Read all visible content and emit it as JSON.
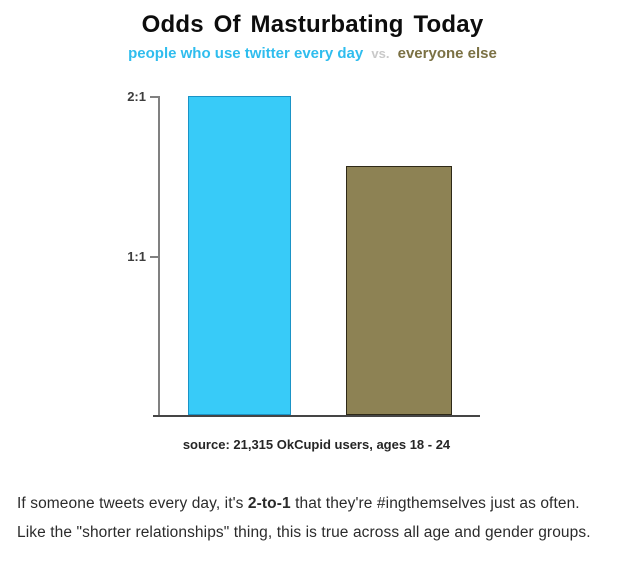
{
  "title": "Odds Of Masturbating Today",
  "subtitle": {
    "group_a": "people who use twitter every day",
    "vs": "vs.",
    "group_b": "everyone else"
  },
  "colors": {
    "title_text": "#0d0d0d",
    "group_a_text": "#2fbdee",
    "vs_text": "#c9c9c9",
    "group_b_text": "#7b7144",
    "bar_a_fill": "#38cbf8",
    "bar_a_border": "#1a93c6",
    "bar_b_fill": "#8d8254",
    "bar_b_border": "#2e2917",
    "axis_line": "#808080",
    "baseline": "#454545",
    "tick_label_text": "#3d3d3d"
  },
  "chart_data": {
    "type": "bar",
    "title": "Odds Of Masturbating Today",
    "subtitle_legend": "people who use twitter every day vs. everyone else",
    "categories": [
      "people who use twitter every day",
      "everyone else"
    ],
    "values": [
      2.0,
      1.56
    ],
    "value_unit": "odds ratio (x:1)",
    "yticks": [
      {
        "label": "2:1",
        "value": 2
      },
      {
        "label": "1:1",
        "value": 1
      }
    ],
    "ylim": [
      0,
      2
    ],
    "grid": false,
    "legend_position": "subtitle above chart, color-coded"
  },
  "source": "source: 21,315 OkCupid users, ages 18 - 24",
  "caption": {
    "line1_pre": "If someone tweets every day, it's ",
    "line1_bold": "2-to-1",
    "line1_post": " that they're #ingthemselves just as often.",
    "line2": "Like the \"shorter relationships\" thing, this is true across all age and gender groups."
  }
}
